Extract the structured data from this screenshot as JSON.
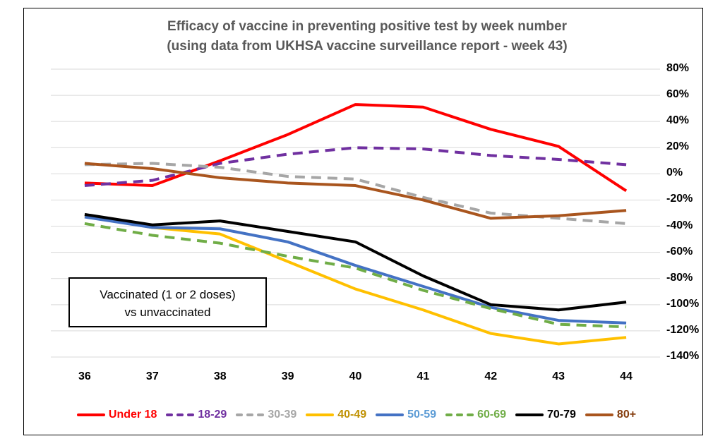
{
  "chart_data": {
    "type": "line",
    "title": "Efficacy of vaccine in preventing positive test by week number",
    "subtitle": "(using data from UKHSA vaccine surveillance report - week 43)",
    "x": [
      "36",
      "37",
      "38",
      "39",
      "40",
      "41",
      "42",
      "43",
      "44"
    ],
    "xlabel": "",
    "ylabel": "",
    "ylim": [
      -140,
      80
    ],
    "ytick_step": 20,
    "ytick_labels": [
      "80%",
      "60%",
      "40%",
      "20%",
      "0%",
      "-20%",
      "-40%",
      "-60%",
      "-80%",
      "-100%",
      "-120%",
      "-140%"
    ],
    "grid": true,
    "gridline_color": "#D9D9D9",
    "legend_position": "bottom",
    "annotation": {
      "line1": "Vaccinated (1 or 2 doses)",
      "line2": "vs unvaccinated"
    },
    "series": [
      {
        "name": "Under 18",
        "color": "#FF0000",
        "text_color": "#FF0000",
        "dash": false,
        "values": [
          -7,
          -9,
          10,
          30,
          53,
          51,
          34,
          21,
          -13
        ]
      },
      {
        "name": "18-29",
        "color": "#7030A0",
        "text_color": "#7030A0",
        "dash": true,
        "values": [
          -9,
          -5,
          8,
          15,
          20,
          19,
          14,
          11,
          7
        ]
      },
      {
        "name": "30-39",
        "color": "#A6A6A6",
        "text_color": "#A6A6A6",
        "dash": true,
        "values": [
          7,
          8,
          5,
          -2,
          -4,
          -18,
          -30,
          -34,
          -38
        ]
      },
      {
        "name": "40-49",
        "color": "#FFC000",
        "text_color": "#BF9000",
        "dash": false,
        "values": [
          -32,
          -41,
          -46,
          -67,
          -88,
          -104,
          -122,
          -130,
          -125
        ]
      },
      {
        "name": "50-59",
        "color": "#4472C4",
        "text_color": "#5B9BD5",
        "dash": false,
        "values": [
          -33,
          -41,
          -42,
          -52,
          -70,
          -86,
          -102,
          -112,
          -114
        ]
      },
      {
        "name": "60-69",
        "color": "#70AD47",
        "text_color": "#70AD47",
        "dash": true,
        "values": [
          -38,
          -47,
          -53,
          -63,
          -72,
          -89,
          -103,
          -115,
          -117
        ]
      },
      {
        "name": "70-79",
        "color": "#000000",
        "text_color": "#000000",
        "dash": false,
        "values": [
          -31,
          -39,
          -36,
          -44,
          -52,
          -78,
          -100,
          -104,
          -98
        ]
      },
      {
        "name": "80+",
        "color": "#A9551E",
        "text_color": "#843C0C",
        "dash": false,
        "values": [
          8,
          4,
          -3,
          -7,
          -9,
          -20,
          -34,
          -32,
          -28
        ]
      }
    ]
  }
}
